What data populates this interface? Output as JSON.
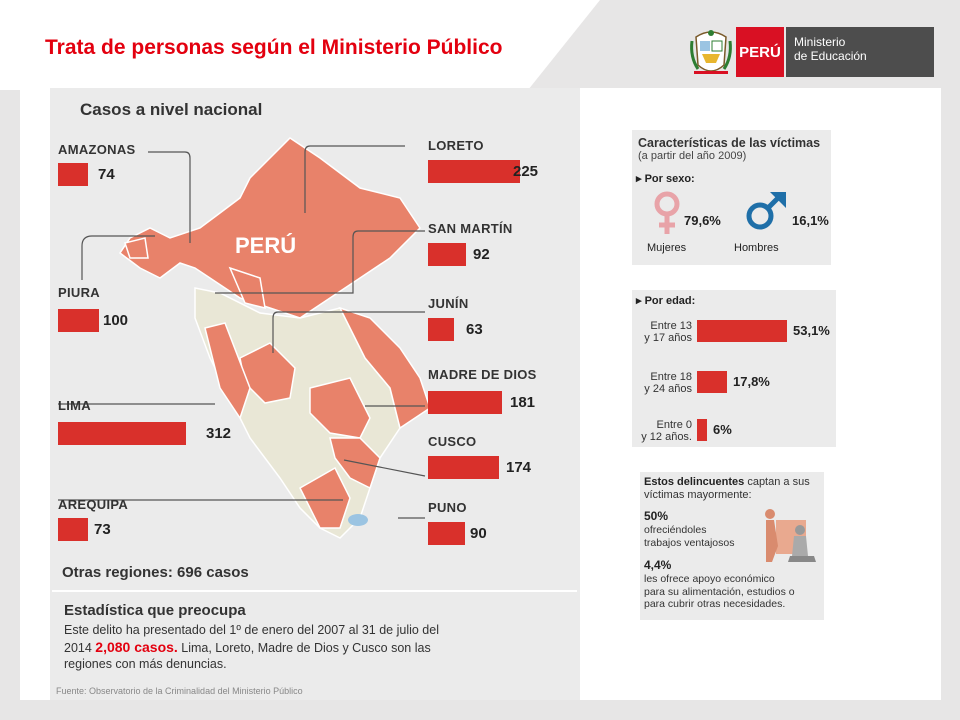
{
  "slide": {
    "title": "Trata de personas según el Ministerio Público"
  },
  "logo": {
    "country": "PERÚ",
    "line1": "Ministerio",
    "line2": "de Educación"
  },
  "map": {
    "title": "Casos a nivel nacional",
    "country_label": "PERÚ",
    "regions": [
      {
        "name": "AMAZONAS",
        "value": "74"
      },
      {
        "name": "LORETO",
        "value": "225"
      },
      {
        "name": "SAN MARTÍN",
        "value": "92"
      },
      {
        "name": "PIURA",
        "value": "100"
      },
      {
        "name": "JUNÍN",
        "value": "63"
      },
      {
        "name": "MADRE DE DIOS",
        "value": "181"
      },
      {
        "name": "LIMA",
        "value": "312"
      },
      {
        "name": "CUSCO",
        "value": "174"
      },
      {
        "name": "AREQUIPA",
        "value": "73"
      },
      {
        "name": "PUNO",
        "value": "90"
      }
    ],
    "others": "Otras regiones: 696 casos",
    "bar_color": "#d9302b",
    "map_color": "#e8826a"
  },
  "statistic": {
    "title": "Estadística que preocupa",
    "text_before": "Este delito ha presentado del 1º de enero del 2007 al 31 de julio del 2014 ",
    "highlight": "2,080 casos.",
    "text_after": " Lima, Loreto, Madre de Dios  y Cusco son las regiones con más denuncias.",
    "source": "Fuente: Observatorio de la Criminalidad del Ministerio Público"
  },
  "victims": {
    "title": "Características de las víctimas",
    "subtitle": "(a partir del año 2009)",
    "by_sex_label": "Por sexo:",
    "women_pct": "79,6%",
    "men_pct": "16,1%",
    "women_label": "Mujeres",
    "men_label": "Hombres",
    "women_icon": "female-symbol-icon",
    "men_icon": "male-symbol-icon"
  },
  "age": {
    "label": "Por edad:",
    "groups": [
      {
        "line1": "Entre 13",
        "line2": "y 17 años",
        "pct": "53,1%",
        "value": 53.1
      },
      {
        "line1": "Entre 18",
        "line2": "y 24 años",
        "pct": "17,8%",
        "value": 17.8
      },
      {
        "line1": "Entre 0",
        "line2": "y 12 años.",
        "pct": "6%",
        "value": 6
      }
    ]
  },
  "criminals": {
    "bold": "Estos delincuentes",
    "rest": " captan a sus víctimas mayormente:",
    "items": [
      {
        "pct": "50%",
        "desc1": "ofreciéndoles",
        "desc2": "trabajos ventajosos",
        "desc3": ""
      },
      {
        "pct": "4,4%",
        "desc1": "les ofrece apoyo económico",
        "desc2": "para su alimentación, estudios o",
        "desc3": "para cubrir otras necesidades."
      }
    ]
  }
}
